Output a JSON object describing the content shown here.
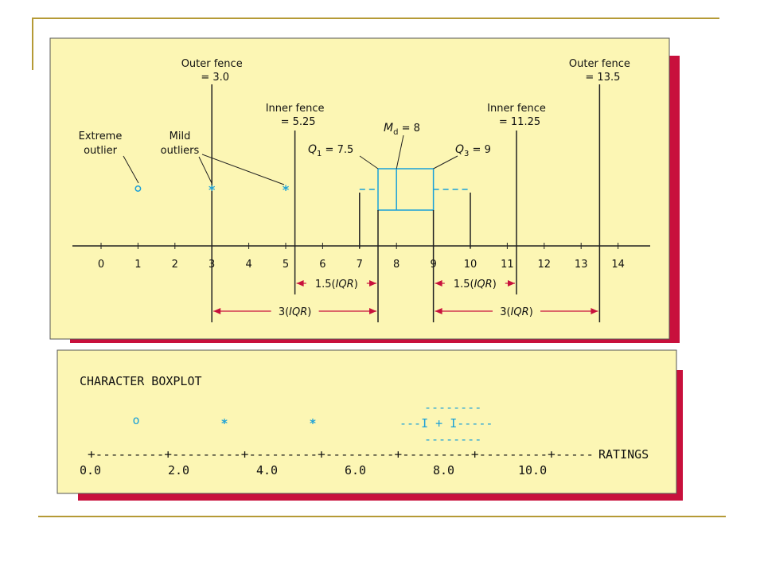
{
  "colors": {
    "panel_fill": "#fcf6b4",
    "panel_shadow": "#c8103c",
    "accent_blue": "#1aa0d8",
    "frame_gold": "#b59a36"
  },
  "chart_data": [
    {
      "type": "box",
      "axis_ticks": [
        0,
        1,
        2,
        3,
        4,
        5,
        6,
        7,
        8,
        9,
        10,
        11,
        12,
        13,
        14
      ],
      "box": {
        "q1": 7.5,
        "median": 8,
        "q3": 9,
        "whisker_low": 7,
        "whisker_high": 10
      },
      "mild_outliers": [
        3,
        5
      ],
      "extreme_outliers": [
        1
      ],
      "fences": [
        {
          "value": 3.0,
          "kind": "outer",
          "label": "Outer fence",
          "value_label": "= 3.0"
        },
        {
          "value": 5.25,
          "kind": "inner",
          "label": "Inner fence",
          "value_label": "= 5.25"
        },
        {
          "value": 11.25,
          "kind": "inner",
          "label": "Inner fence",
          "value_label": "= 11.25"
        },
        {
          "value": 13.5,
          "kind": "outer",
          "label": "Outer fence",
          "value_label": "= 13.5"
        }
      ],
      "annotations": {
        "extreme_outlier": [
          "Extreme",
          "outlier"
        ],
        "mild_outliers": [
          "Mild",
          "outliers"
        ],
        "median": {
          "symbol": "M",
          "sub": "d",
          "rest": " =  8"
        },
        "q1": {
          "symbol": "Q",
          "sub": "1",
          "rest": " = 7.5"
        },
        "q3": {
          "symbol": "Q",
          "sub": "3",
          "rest": " = 9"
        }
      },
      "spans": [
        {
          "from": 5.25,
          "to": 7.5,
          "label_a": "1.5(",
          "label_b": "IQR",
          "label_c": ")"
        },
        {
          "from": 9,
          "to": 11.25,
          "label_a": "1.5(",
          "label_b": "IQR",
          "label_c": ")"
        },
        {
          "from": 3,
          "to": 7.5,
          "label_a": "3(",
          "label_b": "IQR",
          "label_c": ")"
        },
        {
          "from": 9,
          "to": 13.5,
          "label_a": "3(",
          "label_b": "IQR",
          "label_c": ")"
        }
      ]
    },
    {
      "type": "table",
      "title": "CHARACTER BOXPLOT",
      "box_top": "--------",
      "box_mid": "---I  +   I-----",
      "box_bottom": "--------",
      "outlier_circle": "o",
      "outlier_star": "*",
      "axis_line": "+---------+---------+---------+---------+---------+---------+-----",
      "axis_name": "RATINGS",
      "tick_labels": [
        "0.0",
        "2.0",
        "4.0",
        "6.0",
        "8.0",
        "10.0"
      ]
    }
  ]
}
